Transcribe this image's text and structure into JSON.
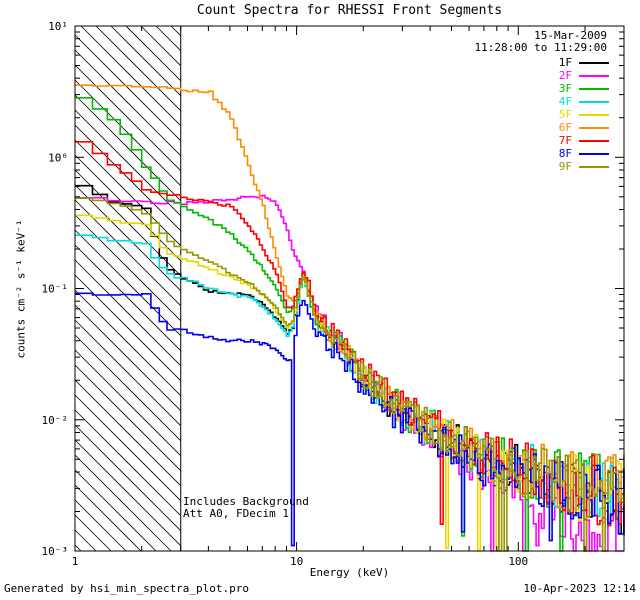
{
  "window": {
    "bg": "#ffffff",
    "fg": "#000000"
  },
  "header": {
    "title": "Count Spectra for RHESSI Front Segments"
  },
  "meta": {
    "date": "15-Mar-2009",
    "time_range": "11:28:00 to 11:29:00"
  },
  "annotations": {
    "line1": "Includes Background",
    "line2": "Att A0, FDecim 1"
  },
  "footer": {
    "left": "Generated by hsi_min_spectra_plot.pro",
    "right": "10-Apr-2023 12:14"
  },
  "chart_data": {
    "type": "line",
    "mode": "histogram-step",
    "title": "Count Spectra for RHESSI Front Segments",
    "x_scale": "log",
    "y_scale": "log",
    "xlim": [
      1,
      300
    ],
    "ylim": [
      0.001,
      10
    ],
    "xlabel": "Energy (keV)",
    "ylabel": "counts cm⁻² s⁻¹ keV⁻¹",
    "x_ticks": [
      1,
      10,
      100
    ],
    "x_tick_labels": [
      "1",
      "10",
      "100"
    ],
    "y_ticks": [
      0.001,
      0.01,
      0.1,
      1,
      10
    ],
    "y_tick_labels": [
      "10⁻³",
      "10⁻²",
      "10⁻¹",
      "10⁰",
      "10¹"
    ],
    "grid": false,
    "legend_position": "top-right",
    "excluded_region": {
      "x_from": 1,
      "x_to": 3,
      "style": "hatched"
    },
    "anchors_x": [
      1,
      1.3,
      1.6,
      2,
      2.5,
      3,
      4,
      5,
      6,
      7,
      8,
      9,
      9.5,
      10,
      10.5,
      11,
      12,
      13,
      15,
      20,
      30,
      50,
      70,
      100,
      150,
      200,
      300
    ],
    "series": [
      {
        "label": "1F",
        "color": "#000000",
        "values": [
          0.6,
          0.48,
          0.44,
          0.4,
          0.14,
          0.12,
          0.095,
          0.09,
          0.09,
          0.075,
          0.06,
          0.045,
          0.05,
          0.08,
          0.13,
          0.11,
          0.06,
          0.05,
          0.038,
          0.02,
          0.011,
          0.0068,
          0.005,
          0.004,
          0.0033,
          0.0028,
          0.0022
        ],
        "spikes": []
      },
      {
        "label": "2F",
        "color": "#ff00ff",
        "values": [
          0.5,
          0.48,
          0.47,
          0.46,
          0.45,
          0.45,
          0.46,
          0.48,
          0.5,
          0.5,
          0.45,
          0.28,
          0.2,
          0.16,
          0.14,
          0.11,
          0.075,
          0.06,
          0.042,
          0.022,
          0.011,
          0.006,
          0.0042,
          0.003,
          0.002,
          0.0014,
          0.0009
        ],
        "spikes": [
          [
            120,
            0.0011
          ],
          [
            240,
            0.0008
          ]
        ]
      },
      {
        "label": "3F",
        "color": "#00bb00",
        "values": [
          2.9,
          2.2,
          1.5,
          0.85,
          0.5,
          0.42,
          0.33,
          0.26,
          0.19,
          0.14,
          0.1,
          0.065,
          0.07,
          0.09,
          0.12,
          0.1,
          0.06,
          0.05,
          0.04,
          0.021,
          0.0115,
          0.007,
          0.0052,
          0.0042,
          0.0035,
          0.003,
          0.0027
        ],
        "spikes": [
          [
            55,
            0.0013
          ]
        ]
      },
      {
        "label": "4F",
        "color": "#00dde0",
        "values": [
          0.26,
          0.24,
          0.23,
          0.22,
          0.13,
          0.12,
          0.1,
          0.09,
          0.085,
          0.072,
          0.058,
          0.044,
          0.05,
          0.075,
          0.12,
          0.1,
          0.058,
          0.048,
          0.037,
          0.02,
          0.011,
          0.0068,
          0.005,
          0.0042,
          0.0034,
          0.003,
          0.0026
        ],
        "spikes": []
      },
      {
        "label": "5F",
        "color": "#e8d800",
        "values": [
          0.36,
          0.34,
          0.32,
          0.3,
          0.19,
          0.17,
          0.14,
          0.12,
          0.105,
          0.088,
          0.068,
          0.05,
          0.055,
          0.085,
          0.125,
          0.105,
          0.062,
          0.05,
          0.04,
          0.021,
          0.0112,
          0.0068,
          0.005,
          0.0041,
          0.0034,
          0.0029,
          0.0025
        ],
        "spikes": []
      },
      {
        "label": "6F",
        "color": "#ff8c00",
        "values": [
          3.5,
          3.5,
          3.45,
          3.5,
          3.4,
          3.3,
          3.1,
          2.0,
          0.85,
          0.42,
          0.18,
          0.085,
          0.08,
          0.095,
          0.13,
          0.11,
          0.065,
          0.052,
          0.041,
          0.022,
          0.0118,
          0.0072,
          0.0053,
          0.0043,
          0.0036,
          0.0031,
          0.0027
        ],
        "spikes": []
      },
      {
        "label": "7F",
        "color": "#ff0000",
        "values": [
          1.3,
          0.95,
          0.75,
          0.58,
          0.52,
          0.5,
          0.46,
          0.42,
          0.3,
          0.2,
          0.13,
          0.07,
          0.075,
          0.095,
          0.14,
          0.12,
          0.07,
          0.055,
          0.043,
          0.023,
          0.0125,
          0.0075,
          0.0055,
          0.0044,
          0.0036,
          0.0031,
          0.0026
        ],
        "spikes": [
          [
            45,
            0.0016
          ]
        ]
      },
      {
        "label": "8F",
        "color": "#0000ee",
        "values": [
          0.09,
          0.09,
          0.092,
          0.09,
          0.05,
          0.048,
          0.042,
          0.04,
          0.04,
          0.038,
          0.034,
          0.028,
          0.03,
          0.06,
          0.085,
          0.075,
          0.045,
          0.04,
          0.032,
          0.018,
          0.01,
          0.0062,
          0.0047,
          0.004,
          0.0032,
          0.0028,
          0.0023
        ],
        "spikes": [
          [
            9.4,
            0.0011
          ],
          [
            55,
            0.0014
          ],
          [
            140,
            0.0012
          ]
        ]
      },
      {
        "label": "9F",
        "color": "#969600",
        "values": [
          0.5,
          0.46,
          0.42,
          0.38,
          0.24,
          0.2,
          0.16,
          0.13,
          0.11,
          0.09,
          0.07,
          0.052,
          0.057,
          0.085,
          0.125,
          0.105,
          0.063,
          0.051,
          0.04,
          0.0215,
          0.0113,
          0.0069,
          0.0051,
          0.0041,
          0.0034,
          0.0029,
          0.0026
        ],
        "spikes": []
      }
    ],
    "noise": {
      "seed": 7,
      "start_x": 11,
      "profile": [
        [
          11,
          0.03
        ],
        [
          15,
          0.08
        ],
        [
          30,
          0.13
        ],
        [
          60,
          0.17
        ],
        [
          120,
          0.22
        ],
        [
          300,
          0.3
        ]
      ]
    }
  }
}
